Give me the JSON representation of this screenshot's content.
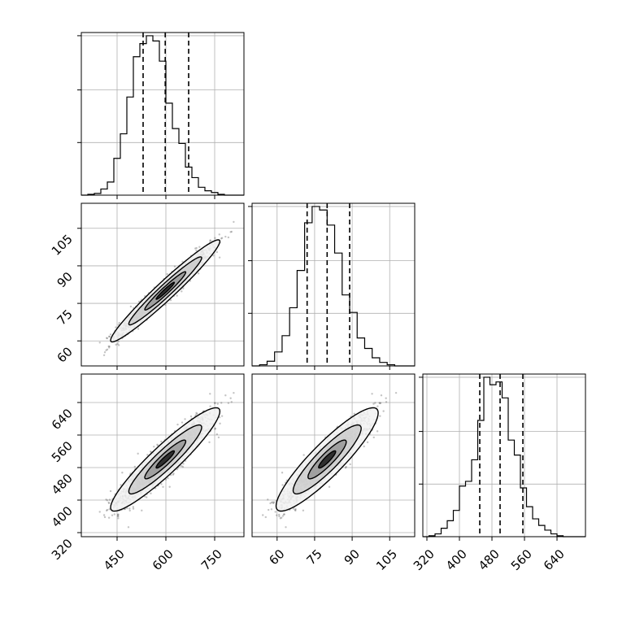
{
  "chart_data": {
    "type": "corner",
    "colors": {
      "hist": "#000000",
      "points": "#555555",
      "grid": "#b0b0b0"
    },
    "grid": true,
    "params": [
      {
        "range": [
          340,
          840
        ],
        "ticks": [
          450,
          600,
          750
        ],
        "tick_labels": [
          "450",
          "600",
          "750"
        ],
        "quantiles": [
          530,
          598,
          670
        ],
        "hist_edges": [
          340,
          360,
          380,
          400,
          420,
          440,
          460,
          480,
          500,
          520,
          540,
          560,
          580,
          600,
          620,
          640,
          660,
          680,
          700,
          720,
          740,
          760,
          780,
          800,
          820,
          840
        ],
        "hist_counts": [
          0,
          1,
          2,
          7,
          15,
          42,
          70,
          112,
          158,
          173,
          182,
          176,
          153,
          105,
          76,
          59,
          32,
          20,
          9,
          5,
          3,
          1,
          0,
          0,
          0
        ]
      },
      {
        "range": [
          50,
          115
        ],
        "ticks": [
          60,
          75,
          90,
          105
        ],
        "tick_labels": [
          "60",
          "75",
          "90",
          "105"
        ],
        "quantiles": [
          72,
          80,
          89
        ],
        "hist_edges": [
          50,
          53,
          56,
          59,
          62,
          65,
          68,
          71,
          74,
          77,
          80,
          83,
          86,
          89,
          92,
          95,
          98,
          101,
          104,
          107,
          110,
          113,
          115
        ],
        "hist_counts": [
          0,
          1,
          4,
          12,
          26,
          50,
          82,
          123,
          137,
          134,
          121,
          97,
          61,
          46,
          24,
          15,
          7,
          3,
          1,
          0,
          0,
          0
        ]
      },
      {
        "range": [
          310,
          710
        ],
        "ticks": [
          320,
          400,
          480,
          560,
          640
        ],
        "tick_labels": [
          "320",
          "400",
          "480",
          "560",
          "640"
        ],
        "quantiles": [
          450,
          500,
          556
        ],
        "hist_edges": [
          310,
          325,
          340,
          355,
          370,
          385,
          400,
          415,
          430,
          445,
          460,
          475,
          490,
          505,
          520,
          535,
          550,
          565,
          580,
          595,
          610,
          625,
          640,
          655,
          670,
          685,
          700,
          710
        ],
        "hist_counts": [
          0,
          1,
          3,
          9,
          17,
          28,
          54,
          59,
          82,
          124,
          170,
          162,
          165,
          148,
          103,
          87,
          52,
          32,
          19,
          12,
          7,
          3,
          1,
          0,
          0,
          0,
          0
        ]
      }
    ],
    "hist_yticks": [
      0.33,
      0.66,
      1.0
    ],
    "correlations": {
      "1_0": 0.97,
      "2_0": 0.93,
      "2_1": 0.9
    }
  }
}
